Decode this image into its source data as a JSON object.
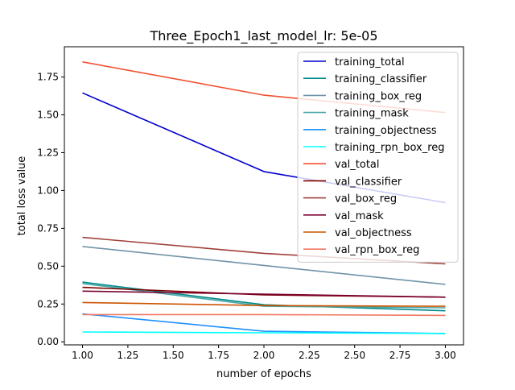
{
  "chart_data": {
    "type": "line",
    "title": "Three_Epoch1_last_model_lr: 5e-05",
    "xlabel": "number of epochs",
    "ylabel": "total loss value",
    "xlim": [
      0.9,
      3.1
    ],
    "ylim": [
      -0.02,
      1.95
    ],
    "xticks": [
      1.0,
      1.25,
      1.5,
      1.75,
      2.0,
      2.25,
      2.5,
      2.75,
      3.0
    ],
    "xtick_labels": [
      "1.00",
      "1.25",
      "1.50",
      "1.75",
      "2.00",
      "2.25",
      "2.50",
      "2.75",
      "3.00"
    ],
    "yticks": [
      0.0,
      0.25,
      0.5,
      0.75,
      1.0,
      1.25,
      1.5,
      1.75
    ],
    "ytick_labels": [
      "0.00",
      "0.25",
      "0.50",
      "0.75",
      "1.00",
      "1.25",
      "1.50",
      "1.75"
    ],
    "grid": false,
    "legend_position": "upper-right",
    "x": [
      1,
      2,
      3
    ],
    "series": [
      {
        "name": "training_total",
        "color": "#0000cd",
        "values": [
          1.645,
          1.125,
          0.92
        ]
      },
      {
        "name": "training_classifier",
        "color": "#008b8b",
        "values": [
          0.395,
          0.245,
          0.205
        ]
      },
      {
        "name": "training_box_reg",
        "color": "#7093a8",
        "values": [
          0.63,
          0.505,
          0.38
        ]
      },
      {
        "name": "training_mask",
        "color": "#4ca6a6",
        "values": [
          0.385,
          0.235,
          0.225
        ]
      },
      {
        "name": "training_objectness",
        "color": "#1e90ff",
        "values": [
          0.185,
          0.07,
          0.055
        ]
      },
      {
        "name": "training_rpn_box_reg",
        "color": "#00ffff",
        "values": [
          0.065,
          0.06,
          0.055
        ]
      },
      {
        "name": "val_total",
        "color": "#f05030",
        "values": [
          1.85,
          1.63,
          1.515
        ]
      },
      {
        "name": "val_classifier",
        "color": "#800000",
        "values": [
          0.36,
          0.31,
          0.295
        ]
      },
      {
        "name": "val_box_reg",
        "color": "#a0403a",
        "values": [
          0.69,
          0.585,
          0.515
        ]
      },
      {
        "name": "val_mask",
        "color": "#7a0030",
        "values": [
          0.335,
          0.315,
          0.295
        ]
      },
      {
        "name": "val_objectness",
        "color": "#cc5500",
        "values": [
          0.26,
          0.24,
          0.235
        ]
      },
      {
        "name": "val_rpn_box_reg",
        "color": "#f07860",
        "values": [
          0.18,
          0.18,
          0.175
        ]
      }
    ]
  }
}
